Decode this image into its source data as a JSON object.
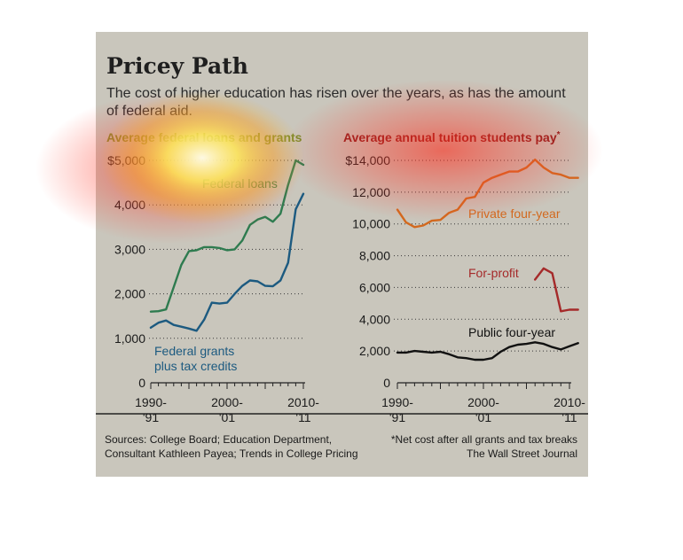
{
  "title": "Pricey Path",
  "subtitle": "The cost of higher education has risen over the years, as has the amount of federal aid.",
  "colors": {
    "panel": "#c9c6bc",
    "loans": "#2e7b4f",
    "grants": "#1c5a80",
    "private": "#d2691e",
    "forprofit": "#a52a2a",
    "public": "#111111",
    "left_title": "#7a8a2a",
    "right_title": "#8b1a1a"
  },
  "chart_data": [
    {
      "type": "line",
      "title": "Average federal loans and grants",
      "x_tick_labels": [
        [
          "1990-",
          "'91"
        ],
        [
          "2000-",
          "'01"
        ],
        [
          "2010-",
          "'11"
        ]
      ],
      "x_ticks": [
        1990,
        2000,
        2010
      ],
      "y_tick_labels": [
        "0",
        "1,000",
        "2,000",
        "3,000",
        "4,000",
        "$5,000"
      ],
      "y_ticks": [
        0,
        1000,
        2000,
        3000,
        4000,
        5000
      ],
      "ylim": [
        0,
        5000
      ],
      "xlim": [
        1990,
        2010
      ],
      "grid": "dotted horizontal",
      "x": [
        1990,
        1991,
        1992,
        1993,
        1994,
        1995,
        1996,
        1997,
        1998,
        1999,
        2000,
        2001,
        2002,
        2003,
        2004,
        2005,
        2006,
        2007,
        2008,
        2009,
        2010
      ],
      "series": [
        {
          "name": "Federal loans",
          "color": "#2e7b4f",
          "label_lines": [
            "Federal loans"
          ],
          "values": [
            1600,
            1610,
            1650,
            2150,
            2650,
            2960,
            2980,
            3050,
            3050,
            3030,
            2980,
            3000,
            3200,
            3550,
            3670,
            3730,
            3620,
            3800,
            4450,
            5000,
            4900
          ]
        },
        {
          "name": "Federal grants plus tax credits",
          "color": "#1c5a80",
          "label_lines": [
            "Federal grants",
            "plus tax credits"
          ],
          "values": [
            1240,
            1350,
            1400,
            1300,
            1260,
            1220,
            1170,
            1420,
            1800,
            1780,
            1800,
            2000,
            2180,
            2300,
            2280,
            2180,
            2170,
            2300,
            2700,
            3900,
            4250
          ]
        }
      ]
    },
    {
      "type": "line",
      "title": "Average annual tuition students pay",
      "title_marker": "*",
      "x_tick_labels": [
        [
          "1990-",
          "'91"
        ],
        [
          "2000-",
          "'01"
        ],
        [
          "2010-",
          "'11"
        ]
      ],
      "x_ticks": [
        1990,
        2000,
        2010
      ],
      "y_tick_labels": [
        "0",
        "2,000",
        "4,000",
        "6,000",
        "8,000",
        "10,000",
        "12,000",
        "$14,000"
      ],
      "y_ticks": [
        0,
        2000,
        4000,
        6000,
        8000,
        10000,
        12000,
        14000
      ],
      "ylim": [
        0,
        14000
      ],
      "xlim": [
        1990,
        2010
      ],
      "grid": "dotted horizontal",
      "series": [
        {
          "name": "Private four-year",
          "color": "#d2691e",
          "label_lines": [
            "Private four-year"
          ],
          "x": [
            1990,
            1991,
            1992,
            1993,
            1994,
            1995,
            1996,
            1997,
            1998,
            1999,
            2000,
            2001,
            2002,
            2003,
            2004,
            2005,
            2006,
            2007,
            2008,
            2009,
            2010,
            2011
          ],
          "values": [
            10900,
            10100,
            9800,
            9900,
            10200,
            10250,
            10700,
            10900,
            11600,
            11700,
            12600,
            12900,
            13100,
            13300,
            13300,
            13550,
            14050,
            13550,
            13200,
            13100,
            12900,
            12900
          ]
        },
        {
          "name": "For-profit",
          "color": "#a52a2a",
          "label_lines": [
            "For-profit"
          ],
          "x": [
            2006,
            2007,
            2008,
            2009,
            2010,
            2011
          ],
          "values": [
            6500,
            7200,
            6900,
            4500,
            4600,
            4600
          ]
        },
        {
          "name": "Public four-year",
          "color": "#111111",
          "label_lines": [
            "Public four-year"
          ],
          "x": [
            1990,
            1991,
            1992,
            1993,
            1994,
            1995,
            1996,
            1997,
            1998,
            1999,
            2000,
            2001,
            2002,
            2003,
            2004,
            2005,
            2006,
            2007,
            2008,
            2009,
            2010,
            2011
          ],
          "values": [
            1900,
            1900,
            2000,
            1950,
            1900,
            1950,
            1800,
            1600,
            1550,
            1450,
            1450,
            1550,
            1950,
            2250,
            2400,
            2450,
            2550,
            2450,
            2250,
            2100,
            2300,
            2500
          ]
        }
      ]
    }
  ],
  "footer": {
    "sources": "Sources: College Board; Education Department, Consultant Kathleen Payea; Trends in College Pricing",
    "note": "*Net cost after all grants and tax breaks",
    "credit": "The Wall Street Journal"
  }
}
